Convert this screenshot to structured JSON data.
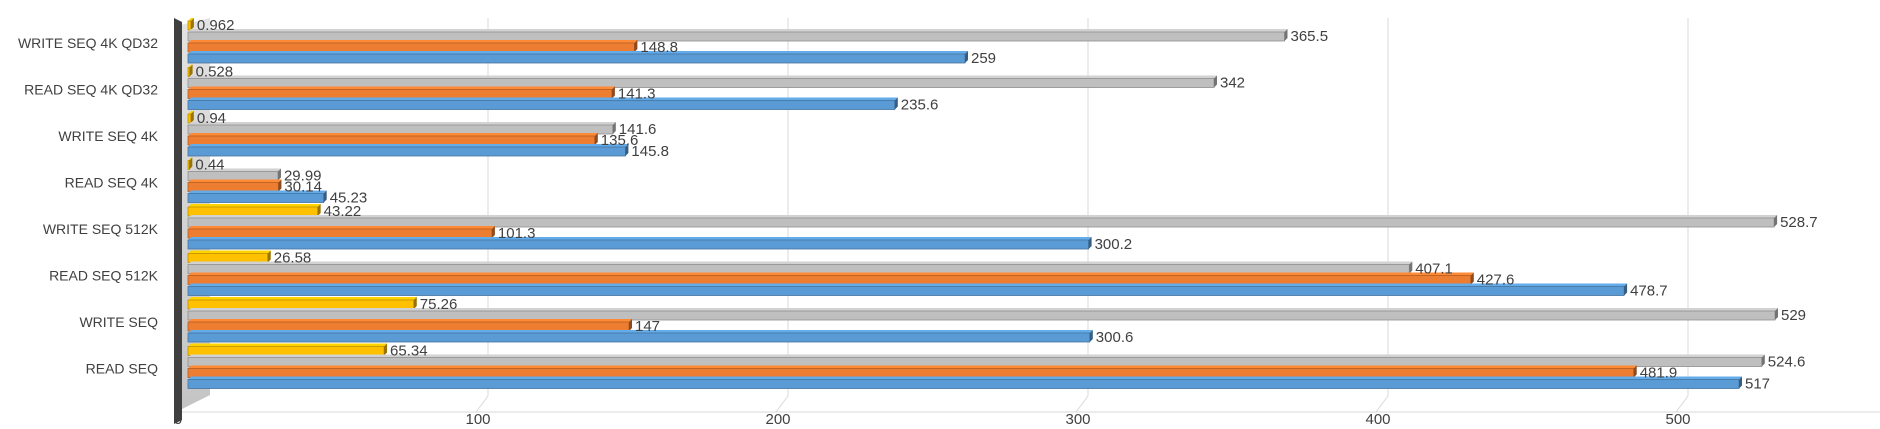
{
  "chart_data": {
    "type": "bar",
    "orientation": "horizontal",
    "title": "",
    "xlabel": "",
    "ylabel": "",
    "xlim": [
      0,
      565
    ],
    "x_ticks": [
      0,
      100,
      200,
      300,
      400,
      500
    ],
    "grid": true,
    "legend": "none",
    "categories": [
      "WRITE SEQ 4K QD32",
      "READ SEQ 4K QD32",
      "WRITE SEQ 4K",
      "READ SEQ 4K",
      "WRITE SEQ 512K",
      "READ SEQ 512K",
      "WRITE SEQ",
      "READ  SEQ"
    ],
    "series": [
      {
        "color": "#FFC000",
        "values": [
          0.962,
          0.528,
          0.94,
          0.44,
          43.22,
          26.58,
          75.26,
          65.34
        ]
      },
      {
        "color": "#BFBFBF",
        "values": [
          365.5,
          342,
          141.6,
          29.99,
          528.7,
          407.1,
          529,
          524.6
        ]
      },
      {
        "color": "#ED7D31",
        "values": [
          148.8,
          141.3,
          135.6,
          30.14,
          101.3,
          427.6,
          147,
          481.9
        ]
      },
      {
        "color": "#5B9BD5",
        "values": [
          259,
          235.6,
          145.8,
          45.23,
          300.2,
          478.7,
          300.6,
          517
        ]
      }
    ]
  }
}
